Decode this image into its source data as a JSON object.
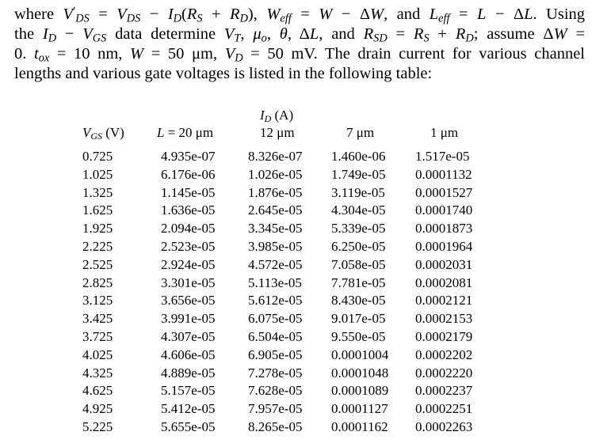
{
  "paragraph": [
    [
      "where ",
      "V",
      "′",
      "DS",
      " = ",
      "V",
      "DS",
      " − ",
      "I",
      "D",
      "(",
      "R",
      "S",
      " + ",
      "R",
      "D",
      "),  ",
      "W",
      "eff",
      " = ",
      "W",
      " − Δ",
      "W",
      ", and ",
      "L",
      "eff",
      " = ",
      "L",
      " − Δ",
      "L",
      ". Using"
    ],
    [
      "the ",
      "I",
      "D",
      " − ",
      "V",
      "GS",
      " data determine ",
      "V",
      "T",
      ", ",
      "μ",
      "o",
      ", ",
      "θ",
      ", Δ",
      "L",
      ", and ",
      "R",
      "SD",
      " = ",
      "R",
      "S",
      " + ",
      "R",
      "D",
      "; assume Δ",
      "W",
      " ="
    ],
    [
      "0. ",
      "t",
      "ox",
      " = 10 nm, ",
      "W",
      " = 50 μm, ",
      "V",
      "D",
      " = 50 mV. The drain current for various channel"
    ],
    [
      "lengths and various gate voltages is listed in the following table:"
    ]
  ],
  "table": {
    "group_header": [
      "I",
      "D",
      " (A)"
    ],
    "columns": [
      [
        "V",
        "GS",
        " (V)"
      ],
      [
        "L",
        " = 20 μm"
      ],
      [
        "12 μm"
      ],
      [
        "7 μm"
      ],
      [
        "1 μm"
      ]
    ],
    "rows": [
      [
        "0.725",
        "4.935e-07",
        "8.326e-07",
        "1.460e-06",
        "1.517e-05"
      ],
      [
        "1.025",
        "6.176e-06",
        "1.026e-05",
        "1.749e-05",
        "0.0001132"
      ],
      [
        "1.325",
        "1.145e-05",
        "1.876e-05",
        "3.119e-05",
        "0.0001527"
      ],
      [
        "1.625",
        "1.636e-05",
        "2.645e-05",
        "4.304e-05",
        "0.0001740"
      ],
      [
        "1.925",
        "2.094e-05",
        "3.345e-05",
        "5.339e-05",
        "0.0001873"
      ],
      [
        "2.225",
        "2.523e-05",
        "3.985e-05",
        "6.250e-05",
        "0.0001964"
      ],
      [
        "2.525",
        "2.924e-05",
        "4.572e-05",
        "7.058e-05",
        "0.0002031"
      ],
      [
        "2.825",
        "3.301e-05",
        "5.113e-05",
        "7.781e-05",
        "0.0002081"
      ],
      [
        "3.125",
        "3.656e-05",
        "5.612e-05",
        "8.430e-05",
        "0.0002121"
      ],
      [
        "3.425",
        "3.991e-05",
        "6.075e-05",
        "9.017e-05",
        "0.0002153"
      ],
      [
        "3.725",
        "4.307e-05",
        "6.504e-05",
        "9.550e-05",
        "0.0002179"
      ],
      [
        "4.025",
        "4.606e-05",
        "6.905e-05",
        "0.0001004",
        "0.0002202"
      ],
      [
        "4.325",
        "4.889e-05",
        "7.278e-05",
        "0.0001048",
        "0.0002220"
      ],
      [
        "4.625",
        "5.157e-05",
        "7.628e-05",
        "0.0001089",
        "0.0002237"
      ],
      [
        "4.925",
        "5.412e-05",
        "7.957e-05",
        "0.0001127",
        "0.0002251"
      ],
      [
        "5.225",
        "5.655e-05",
        "8.265e-05",
        "0.0001162",
        "0.0002263"
      ]
    ]
  }
}
